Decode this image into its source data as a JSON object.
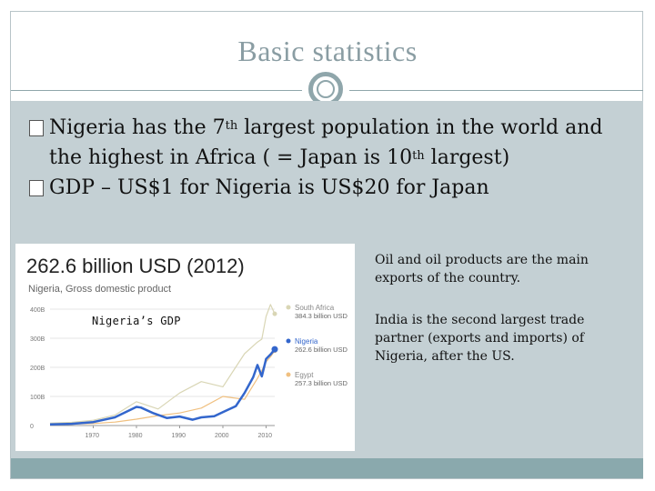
{
  "slide": {
    "title": "Basic statistics"
  },
  "bullets": [
    {
      "pre": "Nigeria has the 7",
      "sup1": "th",
      "mid": " largest population in the world and the highest in Africa ( = Japan is 10",
      "sup2": "th",
      "post": " largest)"
    },
    {
      "text": "GDP – US$1 for Nigeria is US$20 for Japan"
    }
  ],
  "chart": {
    "caption": "Nigeria’s GDP"
  },
  "notes": {
    "oil": "Oil and oil products are the main exports of the country.",
    "india": "India is the second largest trade partner (exports and imports) of Nigeria, after the US."
  },
  "colors": {
    "title": "#8a9da3",
    "panel": "#c4d0d4",
    "bar": "#8aa9ad",
    "nigeria": "#3366cc",
    "south_africa": "#d9d6b5",
    "egypt": "#f0c080"
  },
  "chart_data": {
    "type": "line",
    "title": "262.6 billion USD (2012)",
    "subtitle": "Nigeria, Gross domestic product",
    "yticks": [
      "400B",
      "300B",
      "200B",
      "100B",
      "0"
    ],
    "xticks": [
      "1970",
      "1980",
      "1990",
      "2000",
      "2010"
    ],
    "ylim": [
      0,
      400
    ],
    "xlim": [
      1960,
      2012
    ],
    "series": [
      {
        "name": "South Africa",
        "value_label": "384.3 billion USD",
        "color": "#d9d6b5",
        "x": [
          1960,
          1965,
          1970,
          1975,
          1980,
          1985,
          1990,
          1995,
          2000,
          2005,
          2008,
          2009,
          2010,
          2011,
          2012
        ],
        "y": [
          8,
          11,
          18,
          36,
          82,
          57,
          112,
          151,
          133,
          247,
          287,
          297,
          375,
          416,
          384
        ]
      },
      {
        "name": "Nigeria",
        "value_label": "262.6 billion USD",
        "color": "#3366cc",
        "x": [
          1960,
          1965,
          1970,
          1975,
          1980,
          1981,
          1984,
          1987,
          1990,
          1993,
          1995,
          1998,
          2000,
          2003,
          2005,
          2007,
          2008,
          2009,
          2010,
          2011,
          2012
        ],
        "y": [
          4,
          6,
          12,
          28,
          64,
          62,
          42,
          26,
          31,
          20,
          28,
          32,
          46,
          67,
          112,
          166,
          208,
          169,
          229,
          244,
          262
        ]
      },
      {
        "name": "Egypt",
        "value_label": "257.3 billion USD",
        "color": "#f0c080",
        "x": [
          1960,
          1965,
          1970,
          1975,
          1980,
          1985,
          1990,
          1995,
          2000,
          2005,
          2008,
          2009,
          2010,
          2011,
          2012
        ],
        "y": [
          4,
          5,
          7,
          12,
          22,
          34,
          43,
          60,
          100,
          90,
          162,
          189,
          219,
          236,
          257
        ]
      }
    ]
  }
}
